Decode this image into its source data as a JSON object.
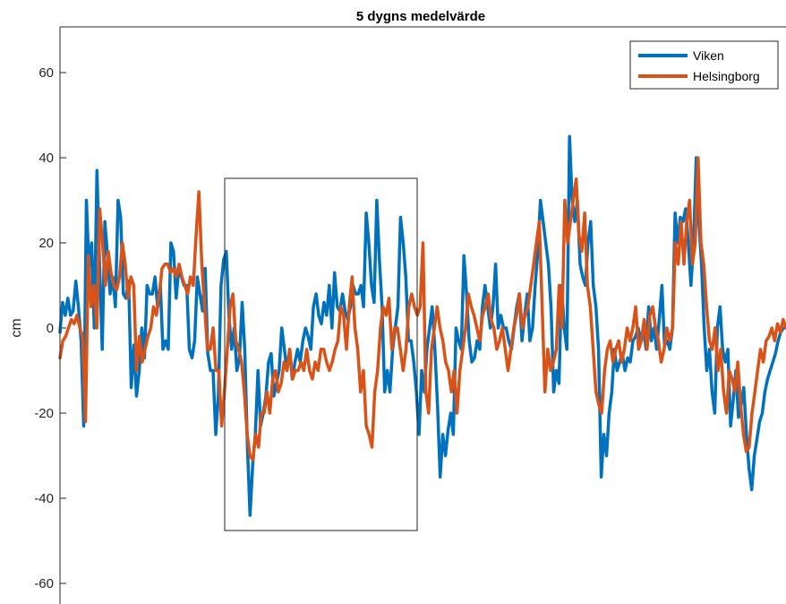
{
  "chart_data": {
    "type": "line",
    "title": "5 dygns medelvärde",
    "xlabel": "",
    "ylabel": "cm",
    "ylim": [
      -65,
      71
    ],
    "yticks": [
      -60,
      -40,
      -20,
      0,
      20,
      40,
      60
    ],
    "grid": false,
    "legend_location": "top-right",
    "annotation": "rectangle highlighting a period of the series",
    "series": [
      {
        "name": "Viken",
        "color": "#0072BD",
        "values": [
          -1,
          6,
          3,
          7,
          3,
          4,
          11,
          5,
          -3,
          -23,
          30,
          14,
          20,
          0,
          37,
          15,
          -5,
          25,
          17,
          8,
          12,
          5,
          30,
          26,
          8,
          7,
          11,
          -14,
          -4,
          -16,
          -10,
          0,
          -7,
          10,
          8,
          8,
          12,
          5,
          10,
          -5,
          -3,
          -5,
          20,
          18,
          7,
          14,
          12,
          10,
          10,
          -5,
          -7,
          -3,
          12,
          8,
          4,
          14,
          -6,
          -10,
          -10,
          -25,
          -16,
          10,
          16,
          18,
          3,
          -5,
          0,
          -10,
          -7,
          6,
          -5,
          -28,
          -44,
          -32,
          -25,
          -10,
          -23,
          -20,
          -16,
          -8,
          -6,
          -16,
          -13,
          -10,
          0,
          -5,
          -10,
          -5,
          -12,
          -8,
          -5,
          -8,
          -3,
          0,
          -2,
          -5,
          5,
          8,
          3,
          1,
          6,
          3,
          10,
          0,
          13,
          5,
          4,
          8,
          4,
          2,
          5,
          10,
          8,
          8,
          10,
          5,
          27,
          20,
          10,
          6,
          30,
          16,
          5,
          -15,
          -10,
          -15,
          -5,
          0,
          5,
          26,
          20,
          12,
          -3,
          -3,
          -8,
          -15,
          -25,
          -10,
          -15,
          -5,
          0,
          5,
          -5,
          -18,
          -35,
          -25,
          -30,
          -24,
          -20,
          -25,
          0,
          -3,
          -5,
          17,
          8,
          -3,
          -8,
          -7,
          -3,
          -5,
          5,
          10,
          5,
          0,
          5,
          15,
          0,
          3,
          0,
          0,
          -3,
          -5,
          0,
          5,
          8,
          -3,
          3,
          8,
          -3,
          0,
          10,
          18,
          30,
          25,
          20,
          15,
          5,
          -15,
          -10,
          -13,
          10,
          0,
          -5,
          45,
          30,
          25,
          30,
          15,
          12,
          10,
          20,
          25,
          10,
          5,
          -5,
          -35,
          -25,
          -30,
          -20,
          -15,
          -5,
          -10,
          -8,
          -6,
          -10,
          -7,
          -8,
          -3,
          -2,
          0,
          -3,
          0,
          -5,
          5,
          -3,
          0,
          -5,
          2,
          10,
          -4,
          -3,
          -5,
          0,
          27,
          20,
          26,
          25,
          28,
          20,
          10,
          20,
          40,
          25,
          15,
          0,
          -10,
          -5,
          -15,
          -20,
          0,
          5,
          -5,
          -8,
          -5,
          -23,
          -17,
          -10,
          -21,
          -18,
          -14,
          -25,
          -33,
          -38,
          -30,
          -26,
          -22,
          -20,
          -15,
          -12,
          -10,
          -8,
          -6,
          -3,
          -1,
          0,
          0
        ]
      },
      {
        "name": "Helsingborg",
        "color": "#D95319",
        "values": [
          -7,
          -3,
          -2,
          0,
          2,
          1,
          3,
          0,
          -2,
          -22,
          17,
          5,
          10,
          0,
          28,
          20,
          10,
          18,
          13,
          10,
          9,
          12,
          20,
          15,
          7,
          12,
          10,
          -10,
          -2,
          -8,
          -5,
          -2,
          0,
          5,
          3,
          8,
          14,
          15,
          15,
          13,
          14,
          12,
          15,
          12,
          10,
          8,
          12,
          10,
          22,
          32,
          15,
          5,
          -5,
          -5,
          0,
          -10,
          -10,
          -23,
          -15,
          -5,
          5,
          8,
          -3,
          -5,
          -8,
          -15,
          -25,
          -30,
          -31,
          -25,
          -28,
          -20,
          -20,
          -15,
          -20,
          -12,
          -10,
          -15,
          -13,
          -8,
          -10,
          -5,
          -12,
          -10,
          -10,
          -8,
          -10,
          -5,
          -10,
          -12,
          -8,
          -10,
          -5,
          -5,
          -8,
          -10,
          -8,
          -5,
          -3,
          5,
          3,
          -5,
          5,
          12,
          0,
          -5,
          -15,
          -10,
          -23,
          -25,
          -28,
          -15,
          -10,
          0,
          5,
          3,
          7,
          -5,
          0,
          0,
          -5,
          -10,
          -5,
          5,
          8,
          5,
          3,
          5,
          20,
          -15,
          -20,
          -5,
          0,
          5,
          0,
          -3,
          -8,
          -10,
          -15,
          -10,
          -20,
          -10,
          -5,
          0,
          8,
          5,
          3,
          0,
          -3,
          3,
          5,
          8,
          2,
          0,
          -5,
          -3,
          0,
          -5,
          -10,
          -5,
          0,
          3,
          8,
          0,
          3,
          5,
          10,
          15,
          20,
          25,
          5,
          -15,
          -5,
          -10,
          -8,
          -5,
          10,
          0,
          30,
          20,
          25,
          30,
          35,
          22,
          18,
          27,
          10,
          5,
          -5,
          -15,
          -18,
          -20,
          -10,
          -5,
          -3,
          -8,
          -5,
          -3,
          -8,
          -5,
          0,
          -3,
          0,
          5,
          -5,
          -3,
          2,
          -5,
          3,
          5,
          0,
          -3,
          -8,
          -5,
          0,
          -3,
          0,
          20,
          15,
          25,
          15,
          25,
          30,
          15,
          20,
          40,
          20,
          15,
          5,
          -3,
          -5,
          0,
          -10,
          -5,
          -15,
          -20,
          -10,
          -12,
          -15,
          -8,
          -18,
          -25,
          -29,
          -28,
          -20,
          -15,
          -10,
          -5,
          -8,
          -3,
          -2,
          0,
          -3,
          1,
          -1,
          2,
          0
        ]
      }
    ]
  }
}
